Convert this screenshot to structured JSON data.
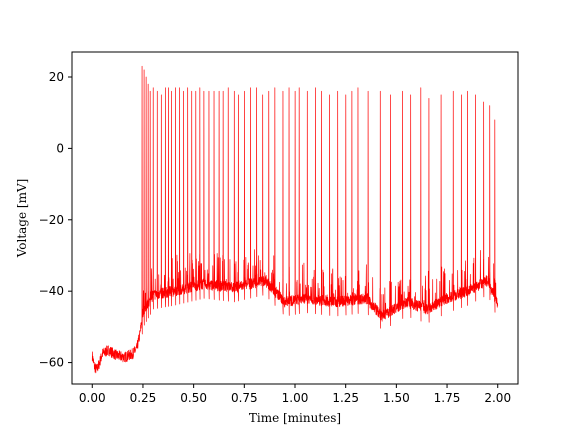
{
  "chart_data": {
    "type": "line",
    "title": "",
    "xlabel": "Time [minutes]",
    "ylabel": "Voltage [mV]",
    "xlim": [
      -0.1,
      2.1
    ],
    "ylim": [
      -66,
      27
    ],
    "xticks": [
      0.0,
      0.25,
      0.5,
      0.75,
      1.0,
      1.25,
      1.5,
      1.75,
      2.0
    ],
    "xtick_labels": [
      "0.00",
      "0.25",
      "0.50",
      "0.75",
      "1.00",
      "1.25",
      "1.50",
      "1.75",
      "2.00"
    ],
    "yticks": [
      -60,
      -40,
      -20,
      0,
      20
    ],
    "ytick_labels": [
      "−60",
      "−40",
      "−20",
      "0",
      "20"
    ],
    "grid": false,
    "legend": "none",
    "series": [
      {
        "color": "#ff0000",
        "description": "membrane voltage trace with spiking activity",
        "baseline": [
          [
            0.0,
            -58
          ],
          [
            0.01,
            -61
          ],
          [
            0.02,
            -62
          ],
          [
            0.03,
            -61
          ],
          [
            0.05,
            -57.5
          ],
          [
            0.08,
            -56.5
          ],
          [
            0.12,
            -58
          ],
          [
            0.16,
            -58.5
          ],
          [
            0.2,
            -57.5
          ],
          [
            0.22,
            -56
          ],
          [
            0.235,
            -52
          ],
          [
            0.25,
            -46
          ],
          [
            0.3,
            -41
          ],
          [
            0.4,
            -40
          ],
          [
            0.55,
            -38
          ],
          [
            0.7,
            -39
          ],
          [
            0.85,
            -37
          ],
          [
            0.95,
            -43
          ],
          [
            1.05,
            -42
          ],
          [
            1.2,
            -43
          ],
          [
            1.35,
            -42
          ],
          [
            1.43,
            -47
          ],
          [
            1.55,
            -43
          ],
          [
            1.65,
            -45
          ],
          [
            1.75,
            -42
          ],
          [
            1.85,
            -40
          ],
          [
            1.95,
            -37
          ],
          [
            2.0,
            -44
          ]
        ],
        "spike_times": [
          0.245,
          0.255,
          0.265,
          0.275,
          0.285,
          0.3,
          0.32,
          0.34,
          0.36,
          0.375,
          0.39,
          0.41,
          0.43,
          0.45,
          0.47,
          0.49,
          0.51,
          0.53,
          0.55,
          0.575,
          0.6,
          0.625,
          0.645,
          0.67,
          0.7,
          0.72,
          0.75,
          0.78,
          0.81,
          0.84,
          0.87,
          0.9,
          0.94,
          0.97,
          1.0,
          1.02,
          1.06,
          1.1,
          1.13,
          1.17,
          1.21,
          1.25,
          1.28,
          1.31,
          1.36,
          1.42,
          1.47,
          1.53,
          1.57,
          1.62,
          1.66,
          1.72,
          1.78,
          1.82,
          1.85,
          1.89,
          1.93,
          1.96,
          1.985
        ],
        "spike_peaks": [
          23,
          22,
          20,
          18,
          16,
          17,
          16,
          15,
          17,
          17,
          16,
          17,
          17,
          16,
          17,
          16,
          16,
          17,
          16,
          16,
          16,
          16,
          16,
          17,
          16,
          15,
          16,
          17,
          17,
          15,
          16,
          17,
          16,
          17,
          16,
          17,
          16,
          17,
          16,
          15,
          16,
          15,
          16,
          17,
          16,
          16,
          15,
          16,
          15,
          17,
          14,
          15,
          16,
          15,
          16,
          15,
          13,
          12,
          8
        ]
      }
    ]
  }
}
